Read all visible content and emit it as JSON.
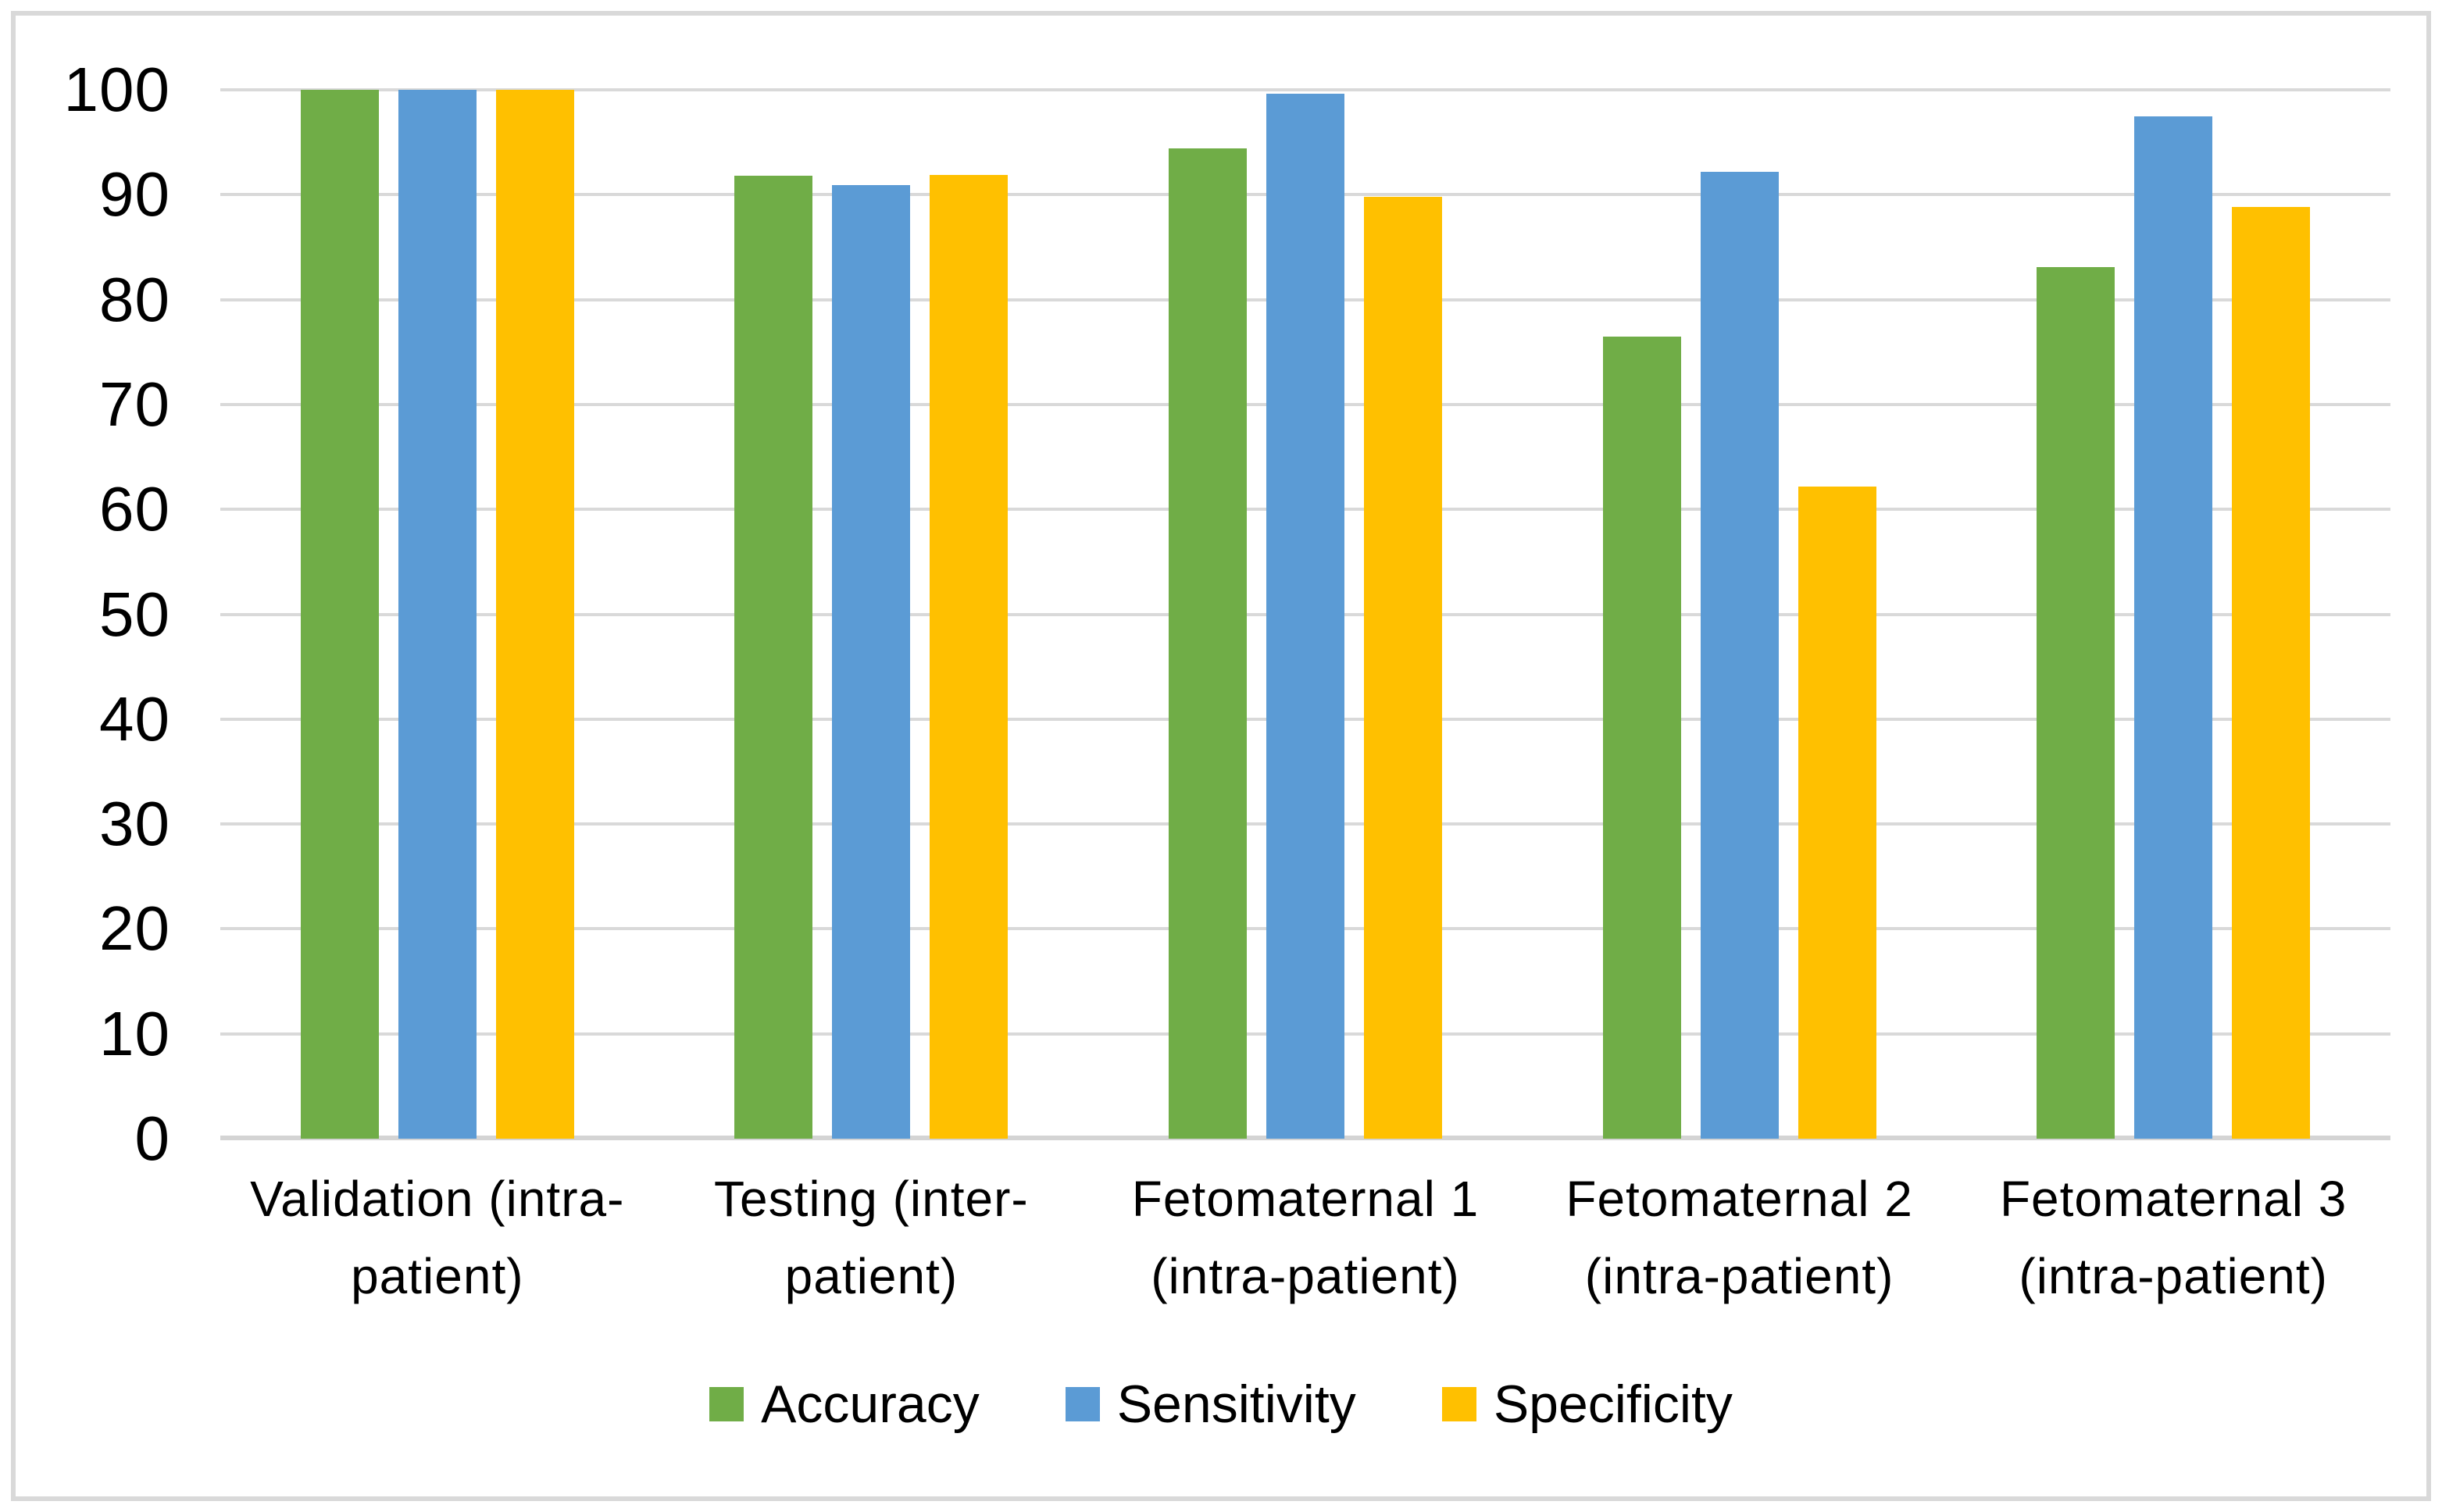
{
  "chart_data": {
    "type": "bar",
    "title": "",
    "xlabel": "",
    "ylabel": "",
    "categories": [
      "Validation (intra-patient)",
      "Testing (inter-patient)",
      "Fetomaternal 1 (intra-patient)",
      "Fetomaternal 2 (intra-patient)",
      "Fetomaternal 3 (intra-patient)"
    ],
    "category_label_lines": [
      [
        "Validation (intra-",
        "patient)"
      ],
      [
        "Testing (inter-",
        "patient)"
      ],
      [
        "Fetomaternal 1",
        "(intra-patient)"
      ],
      [
        "Fetomaternal 2",
        "(intra-patient)"
      ],
      [
        "Fetomaternal 3",
        "(intra-patient)"
      ]
    ],
    "series": [
      {
        "name": "Accuracy",
        "color": "#70AD47",
        "values": [
          100,
          91.8,
          94.4,
          76.5,
          83.1
        ]
      },
      {
        "name": "Sensitivity",
        "color": "#5B9BD5",
        "values": [
          100,
          90.9,
          99.6,
          92.2,
          97.5
        ]
      },
      {
        "name": "Specificity",
        "color": "#FFC000",
        "values": [
          100,
          91.9,
          89.8,
          62.2,
          88.8
        ]
      }
    ],
    "ylim": [
      0,
      100
    ],
    "yticks": [
      0,
      10,
      20,
      30,
      40,
      50,
      60,
      70,
      80,
      90,
      100
    ],
    "grid": true,
    "legend_position": "bottom",
    "legend": [
      "Accuracy",
      "Sensitivity",
      "Specificity"
    ]
  },
  "style": {
    "background": "#FFFFFF",
    "frame_border_color": "#D9D9D9",
    "gridline_color": "#D9D9D9",
    "axis_baseline_color": "#D4D4D4",
    "text_color": "#000000"
  }
}
